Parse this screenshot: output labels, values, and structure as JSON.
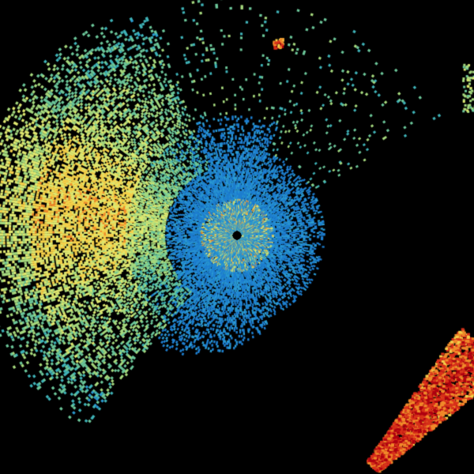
{
  "radar": {
    "palette": [
      "#1565c0",
      "#1e7fd0",
      "#2b9bd2",
      "#3fb3b8",
      "#6cc79a",
      "#a6d97e",
      "#dfe870",
      "#f5d04a",
      "#f08a2a",
      "#d8301a",
      "#b00010"
    ],
    "background": "#000000",
    "site_marker_color": "#000000"
  }
}
